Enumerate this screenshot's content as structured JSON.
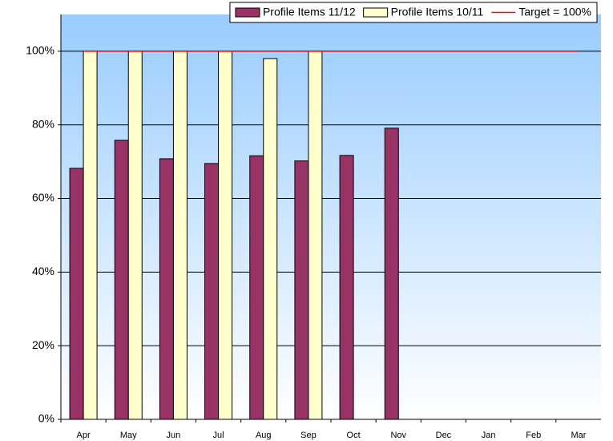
{
  "chart_data": {
    "type": "bar",
    "categories": [
      "Apr",
      "May",
      "Jun",
      "Jul",
      "Aug",
      "Sep",
      "Oct",
      "Nov",
      "Dec",
      "Jan",
      "Feb",
      "Mar"
    ],
    "series": [
      {
        "name": "Profile Items 11/12",
        "color": "#993366",
        "values": [
          68.2,
          75.8,
          70.8,
          69.5,
          71.6,
          70.2,
          71.7,
          79.1,
          null,
          null,
          null,
          null
        ]
      },
      {
        "name": "Profile Items 10/11",
        "color": "#ffffcc",
        "values": [
          100,
          100,
          100,
          100,
          98,
          100,
          null,
          null,
          null,
          null,
          null,
          null
        ]
      },
      {
        "name": "Target = 100%",
        "color": "#ff0000",
        "kind": "line",
        "values": [
          100,
          100,
          100,
          100,
          100,
          100,
          100,
          100,
          100,
          100,
          100,
          100
        ]
      }
    ],
    "ylim": [
      0,
      110
    ],
    "yticks": [
      {
        "value": 0,
        "label": "0%"
      },
      {
        "value": 20,
        "label": "20%"
      },
      {
        "value": 40,
        "label": "40%"
      },
      {
        "value": 60,
        "label": "60%"
      },
      {
        "value": 80,
        "label": "80%"
      },
      {
        "value": 100,
        "label": "100%"
      }
    ],
    "grid": true,
    "legend": "top-right"
  }
}
